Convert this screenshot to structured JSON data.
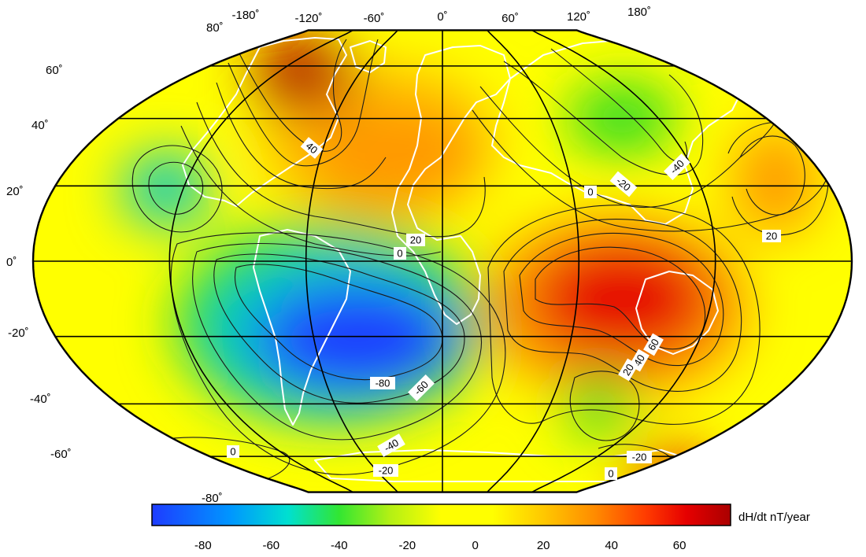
{
  "map": {
    "projection": "Robinson-like pseudo-cylindrical world map",
    "longitude_labels": [
      "-180˚",
      "-120˚",
      "-60˚",
      "0˚",
      "60˚",
      "120˚",
      "180˚"
    ],
    "latitude_labels": [
      "80˚",
      "60˚",
      "40˚",
      "20˚",
      "0˚",
      "-20˚",
      "-40˚",
      "-60˚",
      "-80˚"
    ],
    "contour_labels": [
      "40",
      "-40",
      "-20",
      "0",
      "20",
      "20",
      "0",
      "60",
      "40",
      "20",
      "-80",
      "-60",
      "-40",
      "-20",
      "0",
      "-20",
      "0"
    ],
    "colors": {
      "strong_negative": "#1e3cff",
      "negative": "#00c8c8",
      "mid_negative": "#28dc28",
      "zero": "#ffff00",
      "positive": "#ff9900",
      "strong_positive": "#e60000",
      "max_positive": "#b40000",
      "coastline": "#ffffff",
      "graticule": "#000000"
    },
    "regions": [
      {
        "name": "south-america-atlantic-low",
        "value": -85
      },
      {
        "name": "central-pacific-low",
        "value": -45
      },
      {
        "name": "siberia-low",
        "value": -45
      },
      {
        "name": "south-indian-low",
        "value": -40
      },
      {
        "name": "canada-high",
        "value": 70
      },
      {
        "name": "north-atlantic-africa-high",
        "value": 35
      },
      {
        "name": "indian-ocean-australia-high",
        "value": 65
      },
      {
        "name": "north-pacific-high",
        "value": 30
      },
      {
        "name": "antarctic-high",
        "value": 45
      }
    ]
  },
  "colorbar": {
    "title": "dH/dt nT/year",
    "range": [
      -95,
      75
    ],
    "ticks": [
      "-80",
      "-60",
      "-40",
      "-20",
      "0",
      "20",
      "40",
      "60"
    ],
    "stops": [
      {
        "value": -95,
        "color": "#1e3cff"
      },
      {
        "value": -72,
        "color": "#0096ff"
      },
      {
        "value": -55,
        "color": "#00e0d0"
      },
      {
        "value": -40,
        "color": "#32e632"
      },
      {
        "value": -25,
        "color": "#b4f014"
      },
      {
        "value": -10,
        "color": "#ffff00"
      },
      {
        "value": 5,
        "color": "#ffff00"
      },
      {
        "value": 20,
        "color": "#ffc800"
      },
      {
        "value": 35,
        "color": "#ff8c00"
      },
      {
        "value": 50,
        "color": "#ff3c00"
      },
      {
        "value": 62,
        "color": "#e60000"
      },
      {
        "value": 75,
        "color": "#aa0000"
      }
    ]
  }
}
